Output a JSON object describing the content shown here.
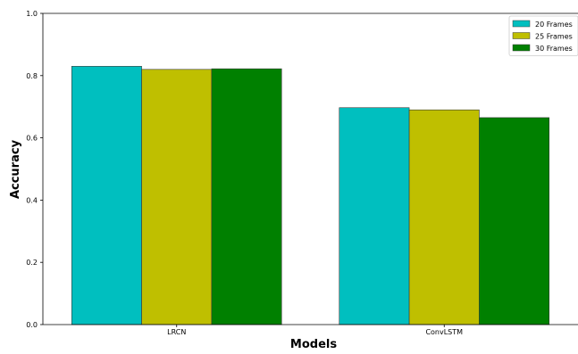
{
  "chart_data": {
    "type": "bar",
    "categories": [
      "LRCN",
      "ConvLSTM"
    ],
    "series": [
      {
        "name": "20 Frames",
        "values": [
          0.83,
          0.697
        ],
        "color": "#00bfbf"
      },
      {
        "name": "25 Frames",
        "values": [
          0.82,
          0.69
        ],
        "color": "#bfbf00"
      },
      {
        "name": "30 Frames",
        "values": [
          0.822,
          0.665
        ],
        "color": "#008000"
      }
    ],
    "xlabel": "Models",
    "ylabel": "Accuracy",
    "ylim": [
      0.0,
      1.0
    ],
    "yticks": [
      "0.0",
      "0.2",
      "0.4",
      "0.6",
      "0.8",
      "1.0"
    ],
    "grid": false,
    "legend_position": "top-right"
  }
}
